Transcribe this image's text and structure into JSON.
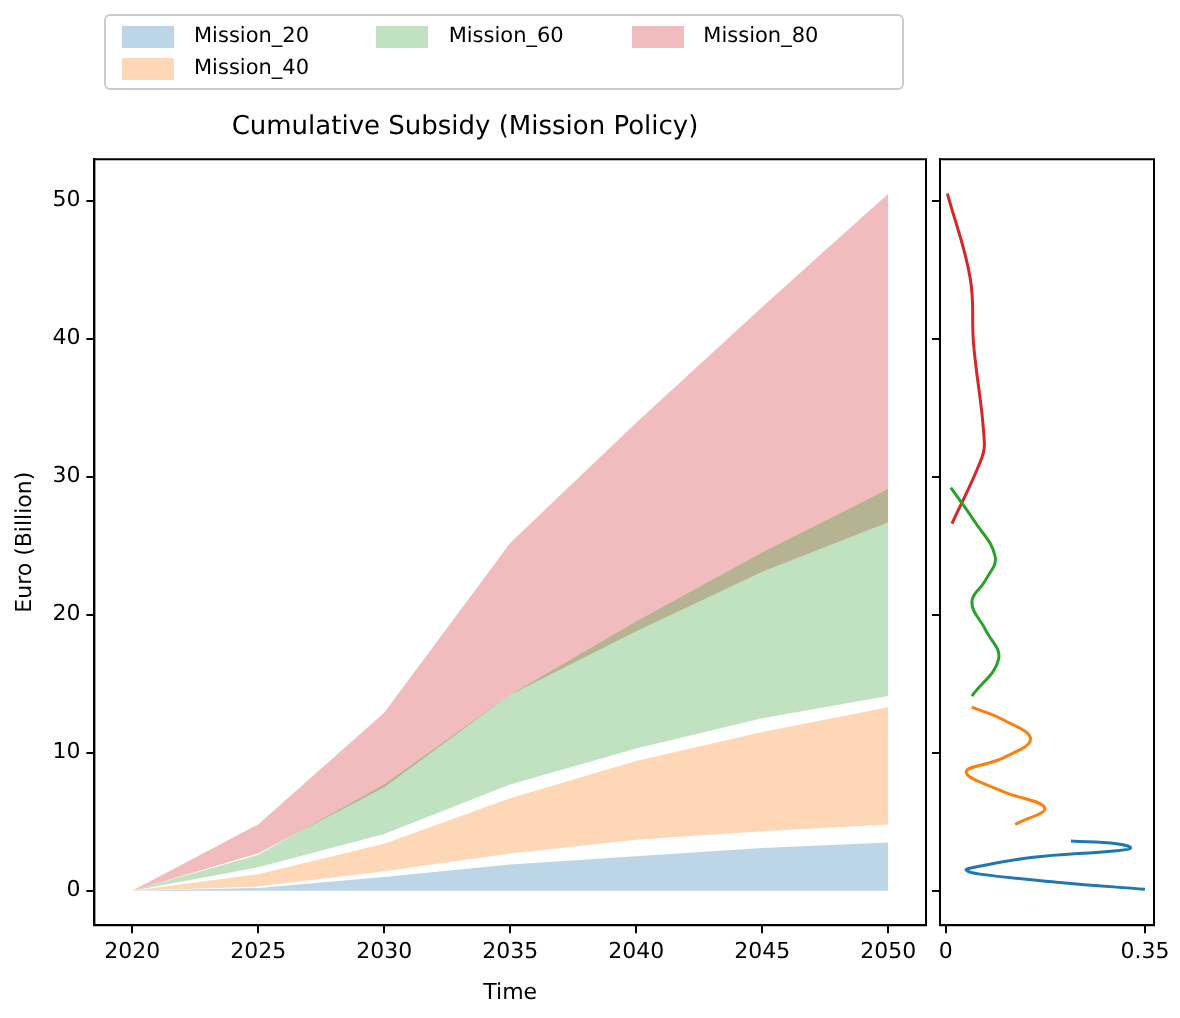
{
  "chart_data": [
    {
      "type": "area",
      "title": "Cumulative Subsidy (Mission Policy)",
      "xlabel": "Time",
      "ylabel": "Euro (Billion)",
      "x": [
        2020,
        2025,
        2030,
        2035,
        2040,
        2045,
        2050
      ],
      "series": [
        {
          "name": "Mission_20",
          "color": "#bcd6e8",
          "values": [
            null,
            null,
            null,
            null,
            null,
            null,
            null
          ],
          "lower": [
            0,
            0,
            0,
            0,
            0,
            0,
            0
          ],
          "upper": [
            0,
            0.2,
            1.0,
            1.9,
            2.5,
            3.1,
            3.5
          ]
        },
        {
          "name": "Mission_40",
          "color": "#fed7b6",
          "values": [
            null,
            null,
            null,
            null,
            null,
            null,
            null
          ],
          "lower": [
            0,
            0.3,
            1.4,
            2.7,
            3.7,
            4.3,
            4.8
          ],
          "upper": [
            0,
            1.2,
            3.4,
            6.7,
            9.4,
            11.5,
            13.3
          ]
        },
        {
          "name": "Mission_60",
          "color": "#c0e2c0",
          "values": [
            null,
            null,
            null,
            null,
            null,
            null,
            null
          ],
          "lower": [
            0,
            1.7,
            4.1,
            7.7,
            10.3,
            12.5,
            14.1
          ],
          "upper": [
            0,
            2.6,
            7.7,
            14.2,
            19.5,
            24.5,
            29.1
          ]
        },
        {
          "name": "Mission_80",
          "color": "#f0bcbe",
          "values": [
            null,
            null,
            null,
            null,
            null,
            null,
            null
          ],
          "lower": [
            0,
            2.7,
            7.5,
            14.2,
            18.8,
            23.1,
            26.7
          ],
          "upper": [
            0,
            4.8,
            12.9,
            25.2,
            33.9,
            42.3,
            50.5
          ]
        }
      ],
      "xlim": [
        2018.5,
        2051.5
      ],
      "xticks": [
        2020,
        2025,
        2030,
        2035,
        2040,
        2045,
        2050
      ],
      "ylim": [
        -2.5,
        53
      ],
      "yticks": [
        0,
        10,
        20,
        30,
        40,
        50
      ],
      "grid": false,
      "legend": "top"
    },
    {
      "type": "line",
      "series": [
        {
          "color": "#1f77b4",
          "x": [
            0.22,
            0.3,
            0.325,
            0.3,
            0.15,
            0.05,
            0.036,
            0.06,
            0.2,
            0.35
          ],
          "values": [
            3.6,
            3.4,
            3.1,
            2.9,
            2.4,
            1.7,
            1.5,
            1.2,
            0.6,
            0.1
          ]
        },
        {
          "color": "#ff7f0e",
          "x": [
            0.046,
            0.1,
            0.149,
            0.1,
            0.036,
            0.1,
            0.174,
            0.122
          ],
          "values": [
            13.3,
            12.4,
            11.0,
            9.6,
            8.6,
            7.2,
            6.0,
            4.8
          ]
        },
        {
          "color": "#2ca02c",
          "x": [
            0.009,
            0.05,
            0.087,
            0.07,
            0.046,
            0.07,
            0.093,
            0.046
          ],
          "values": [
            29.2,
            26.8,
            24.2,
            22.5,
            20.9,
            18.9,
            16.8,
            14.1
          ]
        },
        {
          "color": "#d62728",
          "x": [
            0.003,
            0.043,
            0.049,
            0.068,
            0.059,
            0.011
          ],
          "values": [
            50.5,
            44.4,
            39.6,
            32.4,
            30.9,
            26.6
          ]
        }
      ],
      "xlim": [
        -0.01,
        0.366
      ],
      "xticks": [
        0,
        0.35
      ],
      "ylim": [
        -2.5,
        53
      ],
      "yticks": [
        0,
        10,
        20,
        30,
        40,
        50
      ],
      "tick_labels": "x",
      "grid": false
    }
  ]
}
